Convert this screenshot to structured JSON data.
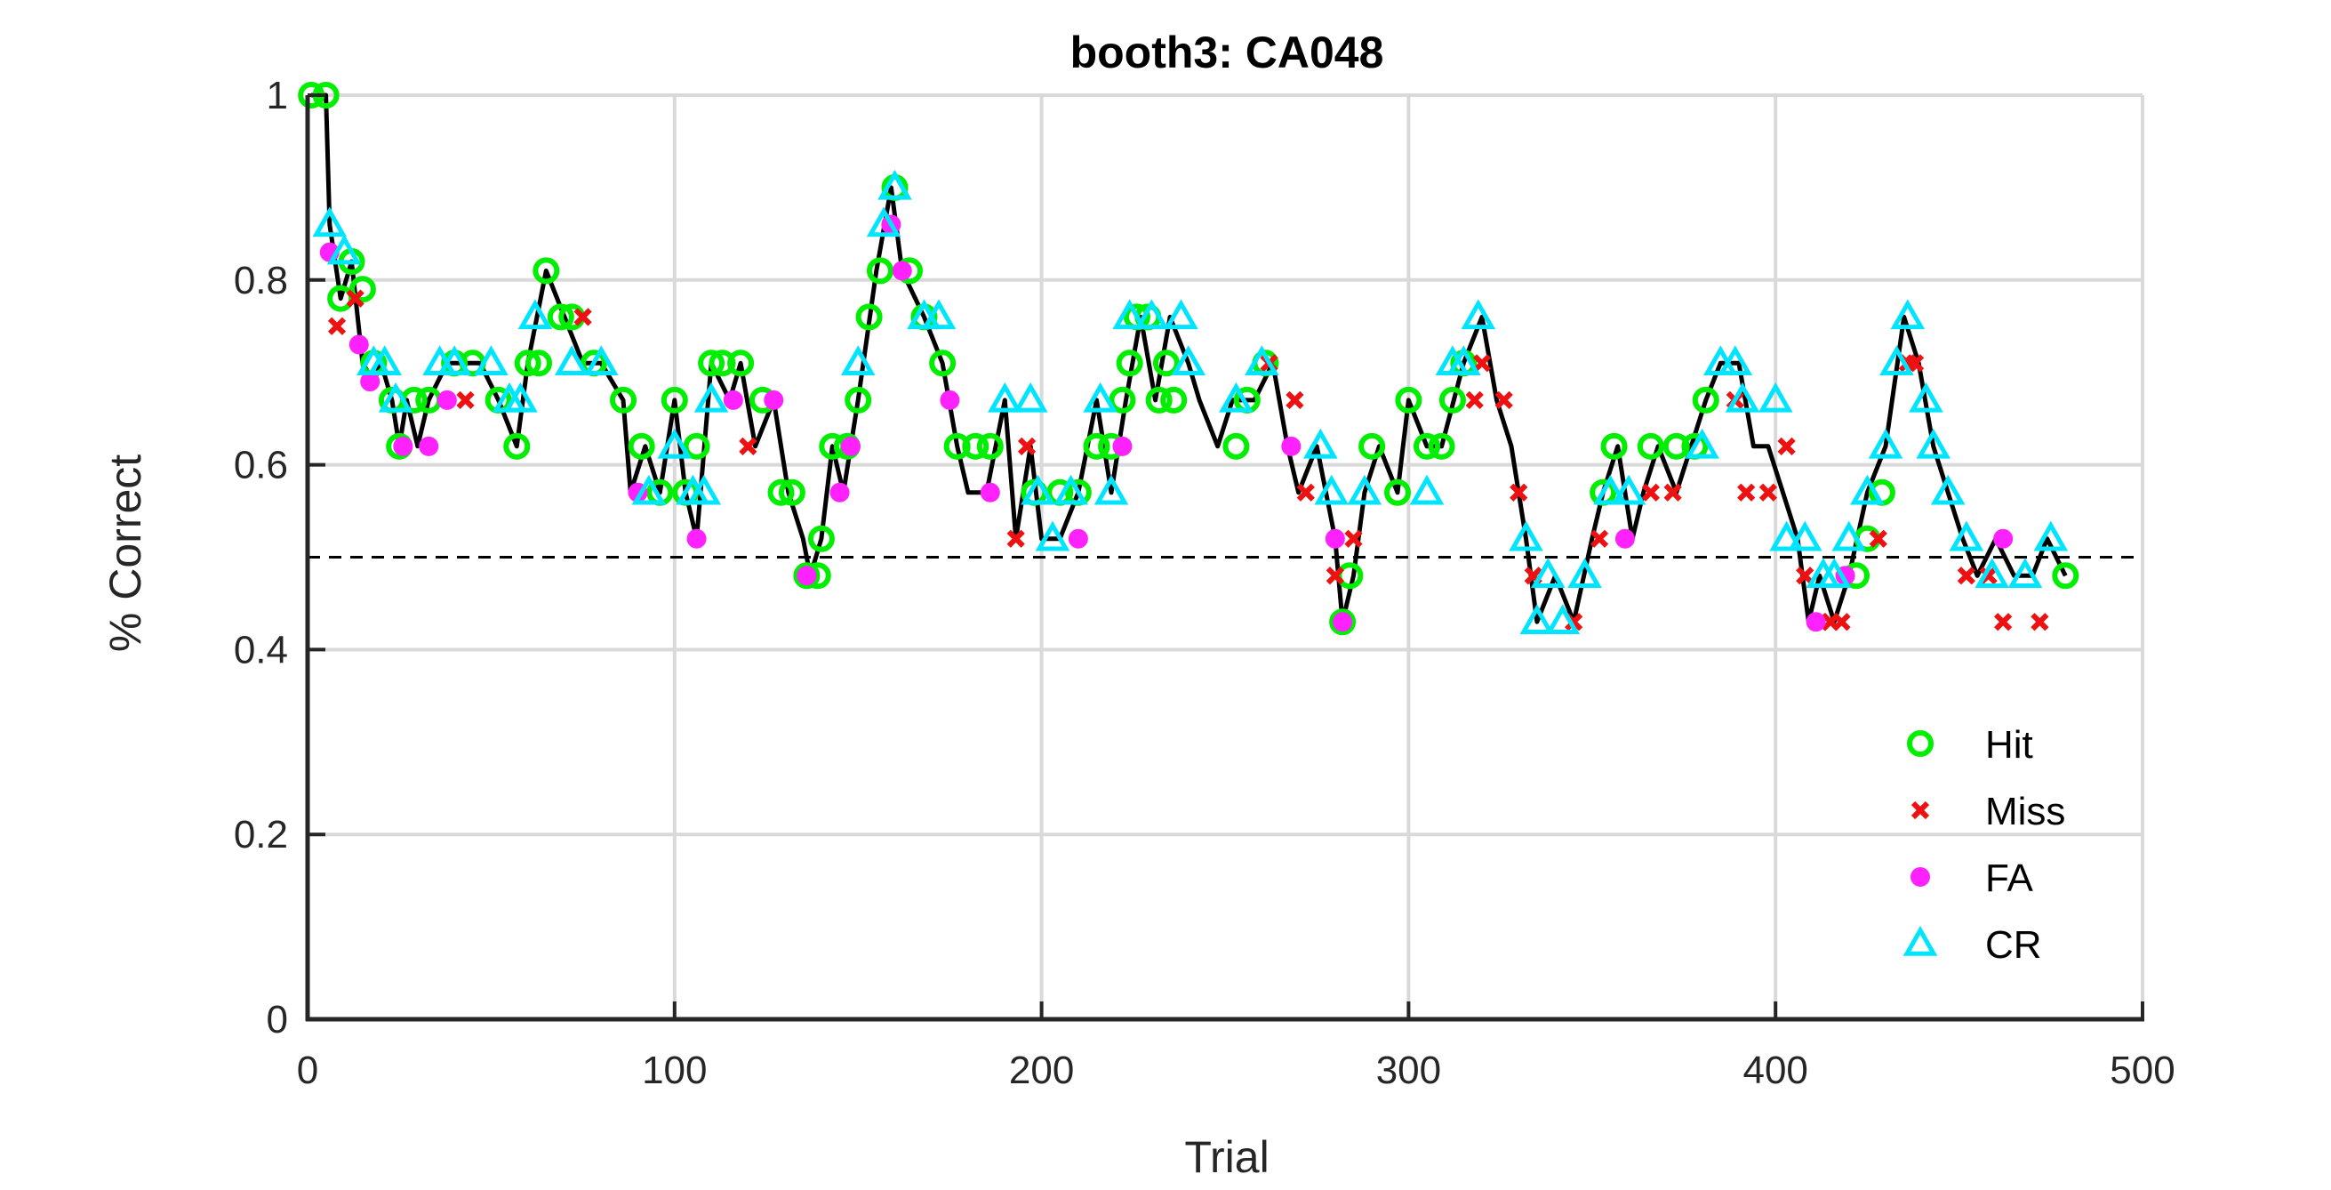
{
  "chart_data": {
    "type": "line",
    "title": "booth3: CA048",
    "xlabel": "Trial",
    "ylabel": "% Correct",
    "xlim": [
      0,
      500
    ],
    "ylim": [
      0,
      1
    ],
    "xticks": [
      0,
      100,
      200,
      300,
      400,
      500
    ],
    "yticks": [
      0,
      0.2,
      0.4,
      0.6,
      0.8,
      1
    ],
    "x_tick_labels": [
      "0",
      "100",
      "200",
      "300",
      "400",
      "500"
    ],
    "y_tick_labels": [
      "0",
      "0.2",
      "0.4",
      "0.6",
      "0.8",
      "1"
    ],
    "grid": true,
    "chance_line": 0.5,
    "legend_position": "bottom-right",
    "legend": [
      "Hit",
      "Miss",
      "FA",
      "CR"
    ],
    "colors": {
      "line": "#000000",
      "hit": "#00ee00",
      "miss": "#ee1111",
      "fa": "#ff22ff",
      "cr": "#00e5ff",
      "grid": "#d9d9d9",
      "axis": "#262626"
    },
    "curve": [
      [
        1,
        1
      ],
      [
        5,
        1
      ],
      [
        6,
        0.86
      ],
      [
        9,
        0.78
      ],
      [
        12,
        0.82
      ],
      [
        15,
        0.71
      ],
      [
        18,
        0.69
      ],
      [
        20,
        0.71
      ],
      [
        23,
        0.67
      ],
      [
        25,
        0.62
      ],
      [
        27,
        0.67
      ],
      [
        30,
        0.62
      ],
      [
        33,
        0.67
      ],
      [
        38,
        0.71
      ],
      [
        42,
        0.71
      ],
      [
        47,
        0.71
      ],
      [
        52,
        0.67
      ],
      [
        57,
        0.62
      ],
      [
        60,
        0.71
      ],
      [
        65,
        0.81
      ],
      [
        70,
        0.76
      ],
      [
        75,
        0.71
      ],
      [
        80,
        0.71
      ],
      [
        86,
        0.67
      ],
      [
        88,
        0.57
      ],
      [
        92,
        0.62
      ],
      [
        96,
        0.57
      ],
      [
        100,
        0.67
      ],
      [
        103,
        0.57
      ],
      [
        106,
        0.52
      ],
      [
        110,
        0.71
      ],
      [
        115,
        0.67
      ],
      [
        118,
        0.71
      ],
      [
        122,
        0.62
      ],
      [
        127,
        0.67
      ],
      [
        131,
        0.57
      ],
      [
        135,
        0.52
      ],
      [
        137,
        0.48
      ],
      [
        140,
        0.52
      ],
      [
        143,
        0.62
      ],
      [
        146,
        0.57
      ],
      [
        150,
        0.67
      ],
      [
        155,
        0.81
      ],
      [
        159,
        0.9
      ],
      [
        162,
        0.81
      ],
      [
        168,
        0.76
      ],
      [
        173,
        0.71
      ],
      [
        177,
        0.62
      ],
      [
        180,
        0.57
      ],
      [
        185,
        0.57
      ],
      [
        190,
        0.67
      ],
      [
        193,
        0.52
      ],
      [
        197,
        0.62
      ],
      [
        200,
        0.52
      ],
      [
        205,
        0.52
      ],
      [
        210,
        0.57
      ],
      [
        215,
        0.67
      ],
      [
        219,
        0.57
      ],
      [
        223,
        0.67
      ],
      [
        227,
        0.76
      ],
      [
        231,
        0.67
      ],
      [
        235,
        0.76
      ],
      [
        240,
        0.71
      ],
      [
        243,
        0.67
      ],
      [
        248,
        0.62
      ],
      [
        252,
        0.67
      ],
      [
        258,
        0.67
      ],
      [
        263,
        0.71
      ],
      [
        267,
        0.62
      ],
      [
        270,
        0.57
      ],
      [
        275,
        0.62
      ],
      [
        280,
        0.52
      ],
      [
        282,
        0.43
      ],
      [
        285,
        0.48
      ],
      [
        288,
        0.57
      ],
      [
        292,
        0.62
      ],
      [
        297,
        0.57
      ],
      [
        300,
        0.67
      ],
      [
        305,
        0.62
      ],
      [
        309,
        0.62
      ],
      [
        315,
        0.71
      ],
      [
        320,
        0.76
      ],
      [
        324,
        0.67
      ],
      [
        328,
        0.62
      ],
      [
        332,
        0.52
      ],
      [
        335,
        0.43
      ],
      [
        340,
        0.48
      ],
      [
        345,
        0.43
      ],
      [
        350,
        0.52
      ],
      [
        353,
        0.57
      ],
      [
        357,
        0.62
      ],
      [
        361,
        0.52
      ],
      [
        364,
        0.57
      ],
      [
        368,
        0.62
      ],
      [
        373,
        0.57
      ],
      [
        377,
        0.62
      ],
      [
        381,
        0.67
      ],
      [
        385,
        0.71
      ],
      [
        390,
        0.71
      ],
      [
        394,
        0.62
      ],
      [
        398,
        0.62
      ],
      [
        402,
        0.57
      ],
      [
        406,
        0.52
      ],
      [
        409,
        0.43
      ],
      [
        412,
        0.48
      ],
      [
        416,
        0.43
      ],
      [
        420,
        0.48
      ],
      [
        425,
        0.57
      ],
      [
        430,
        0.62
      ],
      [
        435,
        0.76
      ],
      [
        439,
        0.71
      ],
      [
        443,
        0.62
      ],
      [
        447,
        0.57
      ],
      [
        451,
        0.52
      ],
      [
        455,
        0.48
      ],
      [
        460,
        0.52
      ],
      [
        465,
        0.48
      ],
      [
        470,
        0.48
      ],
      [
        474,
        0.52
      ],
      [
        479,
        0.48
      ]
    ],
    "series": [
      {
        "name": "Hit",
        "points": [
          [
            1,
            1
          ],
          [
            5,
            1
          ],
          [
            9,
            0.78
          ],
          [
            12,
            0.82
          ],
          [
            15,
            0.79
          ],
          [
            18,
            0.71
          ],
          [
            23,
            0.67
          ],
          [
            25,
            0.62
          ],
          [
            29,
            0.67
          ],
          [
            33,
            0.67
          ],
          [
            40,
            0.71
          ],
          [
            45,
            0.71
          ],
          [
            52,
            0.67
          ],
          [
            57,
            0.62
          ],
          [
            60,
            0.71
          ],
          [
            63,
            0.71
          ],
          [
            65,
            0.81
          ],
          [
            69,
            0.76
          ],
          [
            72,
            0.76
          ],
          [
            78,
            0.71
          ],
          [
            86,
            0.67
          ],
          [
            91,
            0.62
          ],
          [
            96,
            0.57
          ],
          [
            100,
            0.67
          ],
          [
            103,
            0.57
          ],
          [
            106,
            0.62
          ],
          [
            110,
            0.71
          ],
          [
            113,
            0.71
          ],
          [
            118,
            0.71
          ],
          [
            124,
            0.67
          ],
          [
            129,
            0.57
          ],
          [
            132,
            0.57
          ],
          [
            136,
            0.48
          ],
          [
            139,
            0.48
          ],
          [
            140,
            0.52
          ],
          [
            143,
            0.62
          ],
          [
            147,
            0.62
          ],
          [
            150,
            0.67
          ],
          [
            153,
            0.76
          ],
          [
            156,
            0.81
          ],
          [
            160,
            0.9
          ],
          [
            164,
            0.81
          ],
          [
            168,
            0.76
          ],
          [
            173,
            0.71
          ],
          [
            177,
            0.62
          ],
          [
            182,
            0.62
          ],
          [
            186,
            0.62
          ],
          [
            198,
            0.57
          ],
          [
            205,
            0.57
          ],
          [
            210,
            0.57
          ],
          [
            215,
            0.62
          ],
          [
            219,
            0.62
          ],
          [
            222,
            0.67
          ],
          [
            224,
            0.71
          ],
          [
            226,
            0.76
          ],
          [
            229,
            0.76
          ],
          [
            232,
            0.67
          ],
          [
            234,
            0.71
          ],
          [
            236,
            0.67
          ],
          [
            253,
            0.62
          ],
          [
            256,
            0.67
          ],
          [
            261,
            0.71
          ],
          [
            282,
            0.43
          ],
          [
            284,
            0.48
          ],
          [
            290,
            0.62
          ],
          [
            297,
            0.57
          ],
          [
            300,
            0.67
          ],
          [
            305,
            0.62
          ],
          [
            309,
            0.62
          ],
          [
            312,
            0.67
          ],
          [
            315,
            0.71
          ],
          [
            353,
            0.57
          ],
          [
            356,
            0.62
          ],
          [
            366,
            0.62
          ],
          [
            373,
            0.62
          ],
          [
            378,
            0.62
          ],
          [
            381,
            0.67
          ],
          [
            422,
            0.48
          ],
          [
            425,
            0.52
          ],
          [
            429,
            0.57
          ],
          [
            479,
            0.48
          ]
        ]
      },
      {
        "name": "Miss",
        "points": [
          [
            8,
            0.75
          ],
          [
            13,
            0.78
          ],
          [
            43,
            0.67
          ],
          [
            75,
            0.76
          ],
          [
            120,
            0.62
          ],
          [
            193,
            0.52
          ],
          [
            196,
            0.62
          ],
          [
            262,
            0.71
          ],
          [
            269,
            0.67
          ],
          [
            272,
            0.57
          ],
          [
            280,
            0.48
          ],
          [
            285,
            0.52
          ],
          [
            318,
            0.67
          ],
          [
            320,
            0.71
          ],
          [
            326,
            0.67
          ],
          [
            330,
            0.57
          ],
          [
            334,
            0.48
          ],
          [
            345,
            0.43
          ],
          [
            352,
            0.52
          ],
          [
            366,
            0.57
          ],
          [
            372,
            0.57
          ],
          [
            389,
            0.67
          ],
          [
            392,
            0.57
          ],
          [
            398,
            0.57
          ],
          [
            403,
            0.62
          ],
          [
            408,
            0.48
          ],
          [
            412,
            0.43
          ],
          [
            415,
            0.43
          ],
          [
            418,
            0.43
          ],
          [
            428,
            0.52
          ],
          [
            436,
            0.71
          ],
          [
            438,
            0.71
          ],
          [
            452,
            0.48
          ],
          [
            458,
            0.48
          ],
          [
            462,
            0.43
          ],
          [
            472,
            0.43
          ]
        ]
      },
      {
        "name": "FA",
        "points": [
          [
            6,
            0.83
          ],
          [
            14,
            0.73
          ],
          [
            17,
            0.69
          ],
          [
            26,
            0.62
          ],
          [
            33,
            0.62
          ],
          [
            38,
            0.67
          ],
          [
            90,
            0.57
          ],
          [
            106,
            0.52
          ],
          [
            116,
            0.67
          ],
          [
            127,
            0.67
          ],
          [
            136,
            0.48
          ],
          [
            145,
            0.57
          ],
          [
            148,
            0.62
          ],
          [
            159,
            0.86
          ],
          [
            162,
            0.81
          ],
          [
            175,
            0.67
          ],
          [
            186,
            0.57
          ],
          [
            210,
            0.52
          ],
          [
            222,
            0.62
          ],
          [
            268,
            0.62
          ],
          [
            280,
            0.52
          ],
          [
            282,
            0.43
          ],
          [
            359,
            0.52
          ],
          [
            411,
            0.43
          ],
          [
            419,
            0.48
          ],
          [
            462,
            0.52
          ]
        ]
      },
      {
        "name": "CR",
        "points": [
          [
            6,
            0.86
          ],
          [
            10,
            0.83
          ],
          [
            18,
            0.71
          ],
          [
            21,
            0.71
          ],
          [
            24,
            0.67
          ],
          [
            36,
            0.71
          ],
          [
            40,
            0.71
          ],
          [
            50,
            0.71
          ],
          [
            55,
            0.67
          ],
          [
            58,
            0.67
          ],
          [
            62,
            0.76
          ],
          [
            72,
            0.71
          ],
          [
            80,
            0.71
          ],
          [
            93,
            0.57
          ],
          [
            100,
            0.62
          ],
          [
            105,
            0.57
          ],
          [
            108,
            0.57
          ],
          [
            110,
            0.67
          ],
          [
            150,
            0.71
          ],
          [
            157,
            0.86
          ],
          [
            160,
            0.9
          ],
          [
            168,
            0.76
          ],
          [
            172,
            0.76
          ],
          [
            190,
            0.67
          ],
          [
            197,
            0.67
          ],
          [
            199,
            0.57
          ],
          [
            203,
            0.52
          ],
          [
            208,
            0.57
          ],
          [
            216,
            0.67
          ],
          [
            219,
            0.57
          ],
          [
            224,
            0.76
          ],
          [
            230,
            0.76
          ],
          [
            238,
            0.76
          ],
          [
            240,
            0.71
          ],
          [
            253,
            0.67
          ],
          [
            260,
            0.71
          ],
          [
            276,
            0.62
          ],
          [
            279,
            0.57
          ],
          [
            288,
            0.57
          ],
          [
            305,
            0.57
          ],
          [
            312,
            0.71
          ],
          [
            315,
            0.71
          ],
          [
            319,
            0.76
          ],
          [
            332,
            0.52
          ],
          [
            335,
            0.43
          ],
          [
            338,
            0.48
          ],
          [
            342,
            0.43
          ],
          [
            348,
            0.48
          ],
          [
            355,
            0.57
          ],
          [
            360,
            0.57
          ],
          [
            380,
            0.62
          ],
          [
            385,
            0.71
          ],
          [
            389,
            0.71
          ],
          [
            391,
            0.67
          ],
          [
            400,
            0.67
          ],
          [
            403,
            0.52
          ],
          [
            408,
            0.52
          ],
          [
            413,
            0.48
          ],
          [
            416,
            0.48
          ],
          [
            420,
            0.52
          ],
          [
            425,
            0.57
          ],
          [
            430,
            0.62
          ],
          [
            433,
            0.71
          ],
          [
            436,
            0.76
          ],
          [
            441,
            0.67
          ],
          [
            443,
            0.62
          ],
          [
            447,
            0.57
          ],
          [
            452,
            0.52
          ],
          [
            459,
            0.48
          ],
          [
            468,
            0.48
          ],
          [
            475,
            0.52
          ]
        ]
      }
    ]
  }
}
